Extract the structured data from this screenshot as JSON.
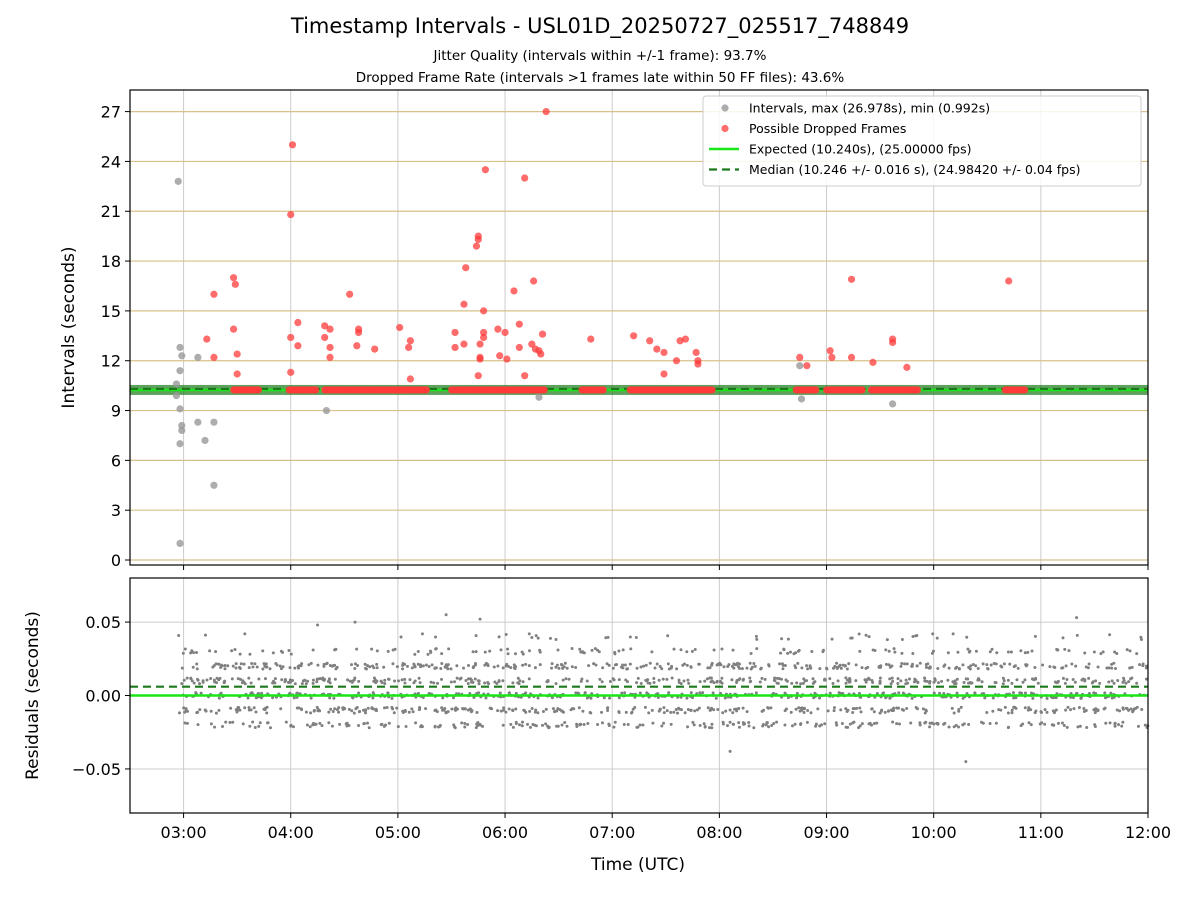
{
  "title": "Timestamp Intervals - USL01D_20250727_025517_748849",
  "subtitle1": "Jitter Quality (intervals within +/-1 frame): 93.7%",
  "subtitle2": "Dropped Frame Rate (intervals >1 frames late within 50 FF files): 43.6%",
  "colors": {
    "intervals": "#999999",
    "dropped": "#ff3b3b",
    "expected": "#19e619",
    "median": "#1a7a1a",
    "residuals": "#808080",
    "hgrid_top": "#d8c08a",
    "grid": "#cccccc"
  },
  "chart_data": [
    {
      "type": "scatter",
      "ylabel": "Intervals (seconds)",
      "xlim": [
        "02:30",
        "12:00"
      ],
      "ylim": [
        -0.3,
        28.3
      ],
      "yticks": [
        0,
        3,
        6,
        9,
        12,
        15,
        18,
        21,
        24,
        27
      ],
      "ytick_labels": [
        "0",
        "3",
        "6",
        "9",
        "12",
        "15",
        "18",
        "21",
        "24",
        "27"
      ],
      "grid": true,
      "legend_position": "top-right",
      "legend": [
        "Intervals, max (26.978s), min (0.992s)",
        "Possible Dropped Frames",
        "Expected (10.240s), (25.00000 fps)",
        "Median (10.246 +/- 0.016 s), (24.98420 +/- 0.04 fps)"
      ],
      "expected": 10.24,
      "median": 10.246,
      "series": [
        {
          "name": "Intervals, max (26.978s), min (0.992s)",
          "points": [
            [
              "02:56",
              10.6
            ],
            [
              "02:56",
              9.9
            ],
            [
              "02:57",
              22.8
            ],
            [
              "02:58",
              12.8
            ],
            [
              "02:58",
              11.4
            ],
            [
              "02:58",
              9.1
            ],
            [
              "02:58",
              7.0
            ],
            [
              "02:59",
              8.1
            ],
            [
              "02:59",
              7.8
            ],
            [
              "02:59",
              12.3
            ],
            [
              "02:58",
              1.0
            ],
            [
              "03:08",
              12.2
            ],
            [
              "03:08",
              8.3
            ],
            [
              "03:12",
              7.2
            ],
            [
              "03:17",
              8.3
            ],
            [
              "03:17",
              4.5
            ],
            [
              "04:20",
              9.0
            ],
            [
              "06:19",
              9.8
            ],
            [
              "08:45",
              11.7
            ],
            [
              "08:46",
              9.7
            ],
            [
              "09:37",
              9.4
            ]
          ]
        },
        {
          "name": "Possible Dropped Frames",
          "points": [
            [
              "03:13",
              13.3
            ],
            [
              "03:17",
              12.2
            ],
            [
              "03:17",
              16.0
            ],
            [
              "03:28",
              17.0
            ],
            [
              "03:29",
              16.6
            ],
            [
              "03:28",
              13.9
            ],
            [
              "03:30",
              12.4
            ],
            [
              "03:30",
              11.2
            ],
            [
              "04:00",
              20.8
            ],
            [
              "04:01",
              25.0
            ],
            [
              "04:00",
              13.4
            ],
            [
              "04:00",
              11.3
            ],
            [
              "04:04",
              14.3
            ],
            [
              "04:04",
              12.9
            ],
            [
              "04:19",
              14.1
            ],
            [
              "04:19",
              13.4
            ],
            [
              "04:22",
              13.9
            ],
            [
              "04:22",
              12.8
            ],
            [
              "04:22",
              12.2
            ],
            [
              "04:33",
              16.0
            ],
            [
              "04:38",
              13.9
            ],
            [
              "04:38",
              13.7
            ],
            [
              "04:37",
              12.9
            ],
            [
              "04:47",
              12.7
            ],
            [
              "05:01",
              14.0
            ],
            [
              "05:06",
              12.8
            ],
            [
              "05:07",
              13.2
            ],
            [
              "05:07",
              10.9
            ],
            [
              "05:32",
              13.7
            ],
            [
              "05:32",
              12.8
            ],
            [
              "05:37",
              15.4
            ],
            [
              "05:37",
              13.0
            ],
            [
              "05:38",
              17.6
            ],
            [
              "05:45",
              19.5
            ],
            [
              "05:45",
              19.3
            ],
            [
              "05:44",
              18.9
            ],
            [
              "05:46",
              13.0
            ],
            [
              "05:46",
              12.2
            ],
            [
              "05:46",
              12.1
            ],
            [
              "05:45",
              11.1
            ],
            [
              "05:48",
              13.4
            ],
            [
              "05:48",
              13.7
            ],
            [
              "05:48",
              15.0
            ],
            [
              "05:49",
              23.5
            ],
            [
              "05:56",
              13.9
            ],
            [
              "05:57",
              12.3
            ],
            [
              "06:00",
              13.7
            ],
            [
              "06:01",
              12.1
            ],
            [
              "06:05",
              16.2
            ],
            [
              "06:08",
              14.2
            ],
            [
              "06:08",
              12.8
            ],
            [
              "06:11",
              23.0
            ],
            [
              "06:11",
              11.1
            ],
            [
              "06:15",
              13.0
            ],
            [
              "06:16",
              16.8
            ],
            [
              "06:17",
              12.7
            ],
            [
              "06:19",
              12.6
            ],
            [
              "06:20",
              12.4
            ],
            [
              "06:21",
              13.6
            ],
            [
              "06:23",
              27.0
            ],
            [
              "06:48",
              13.3
            ],
            [
              "07:12",
              13.5
            ],
            [
              "07:21",
              13.2
            ],
            [
              "07:25",
              12.7
            ],
            [
              "07:29",
              12.5
            ],
            [
              "07:29",
              11.2
            ],
            [
              "07:36",
              12.0
            ],
            [
              "07:38",
              13.2
            ],
            [
              "07:41",
              13.3
            ],
            [
              "07:47",
              12.5
            ],
            [
              "07:48",
              12.0
            ],
            [
              "07:48",
              11.8
            ],
            [
              "08:45",
              12.2
            ],
            [
              "08:49",
              11.7
            ],
            [
              "09:02",
              12.6
            ],
            [
              "09:03",
              12.2
            ],
            [
              "09:14",
              16.9
            ],
            [
              "09:14",
              12.2
            ],
            [
              "09:26",
              11.9
            ],
            [
              "09:37",
              13.3
            ],
            [
              "09:37",
              13.1
            ],
            [
              "09:45",
              11.6
            ],
            [
              "10:42",
              16.8
            ]
          ],
          "baseline_value": 10.24,
          "baseline_runs": [
            [
              "03:28",
              "03:42"
            ],
            [
              "03:59",
              "04:14"
            ],
            [
              "04:19",
              "05:02"
            ],
            [
              "05:00",
              "05:16"
            ],
            [
              "05:30",
              "05:44"
            ],
            [
              "05:45",
              "06:22"
            ],
            [
              "06:43",
              "06:55"
            ],
            [
              "07:10",
              "07:56"
            ],
            [
              "08:43",
              "08:54"
            ],
            [
              "09:00",
              "09:20"
            ],
            [
              "09:25",
              "09:45"
            ],
            [
              "09:46",
              "09:51"
            ],
            [
              "10:40",
              "10:51"
            ]
          ]
        }
      ]
    },
    {
      "type": "scatter",
      "ylabel": "Residuals (seconds)",
      "xlabel": "Time (UTC)",
      "xlim": [
        "02:30",
        "12:00"
      ],
      "ylim": [
        -0.08,
        0.08
      ],
      "yticks": [
        -0.05,
        0.0,
        0.05
      ],
      "ytick_labels": [
        "−0.05",
        "0.00",
        "0.05"
      ],
      "xticks": [
        "03:00",
        "04:00",
        "05:00",
        "06:00",
        "07:00",
        "08:00",
        "09:00",
        "10:00",
        "11:00",
        "12:00"
      ],
      "grid": true,
      "expected_line": 0.0,
      "median_line": 0.006,
      "series": [
        {
          "name": "",
          "x_range": [
            "02:57",
            "12:00"
          ],
          "levels": [
            -0.02,
            -0.01,
            0.0,
            0.01,
            0.02,
            0.03,
            0.04
          ],
          "range": [
            -0.045,
            0.056
          ],
          "count": 1800
        }
      ]
    }
  ]
}
